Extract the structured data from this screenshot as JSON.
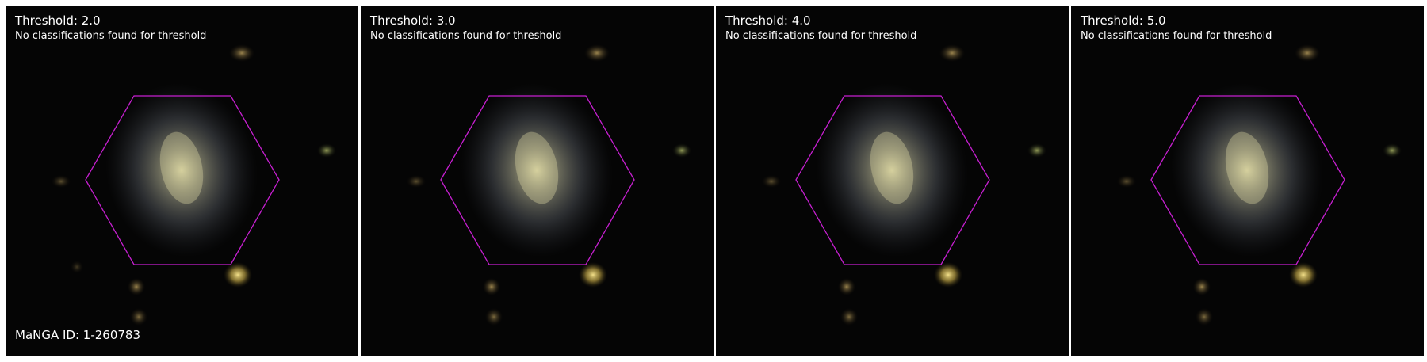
{
  "colors": {
    "hexagon": "#c61fd0",
    "background": "#050505",
    "text": "#ffffff"
  },
  "panels": [
    {
      "title": "Threshold: 2.0",
      "status": "No classifications found for threshold"
    },
    {
      "title": "Threshold: 3.0",
      "status": "No classifications found for threshold"
    },
    {
      "title": "Threshold: 4.0",
      "status": "No classifications found for threshold"
    },
    {
      "title": "Threshold: 5.0",
      "status": "No classifications found for threshold"
    }
  ],
  "manga_id": "MaNGA ID: 1-260783"
}
